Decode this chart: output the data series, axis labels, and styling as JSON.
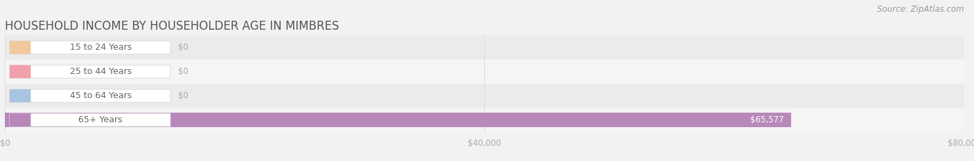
{
  "title": "HOUSEHOLD INCOME BY HOUSEHOLDER AGE IN MIMBRES",
  "source": "Source: ZipAtlas.com",
  "categories": [
    "15 to 24 Years",
    "25 to 44 Years",
    "45 to 64 Years",
    "65+ Years"
  ],
  "values": [
    0,
    0,
    0,
    65577
  ],
  "bar_colors": [
    "#f2c89e",
    "#f2a0aa",
    "#a8c4e0",
    "#b888bb"
  ],
  "value_labels": [
    "$0",
    "$0",
    "$0",
    "$65,577"
  ],
  "xlim": [
    0,
    80000
  ],
  "xticks": [
    0,
    40000,
    80000
  ],
  "xticklabels": [
    "$0",
    "$40,000",
    "$80,000"
  ],
  "bg_color": "#f2f2f2",
  "row_bg_even": "#ebebeb",
  "row_bg_odd": "#f5f5f5",
  "title_color": "#555555",
  "source_color": "#999999",
  "tick_color": "#aaaaaa",
  "grid_color": "#dddddd",
  "bar_height": 0.62,
  "pill_color": "#ffffff",
  "pill_edge_color": "#dddddd",
  "label_text_color": "#666666",
  "zero_value_color": "#aaaaaa",
  "title_fontsize": 12,
  "label_fontsize": 9,
  "value_fontsize": 8.5,
  "source_fontsize": 8.5,
  "tick_fontsize": 8.5
}
